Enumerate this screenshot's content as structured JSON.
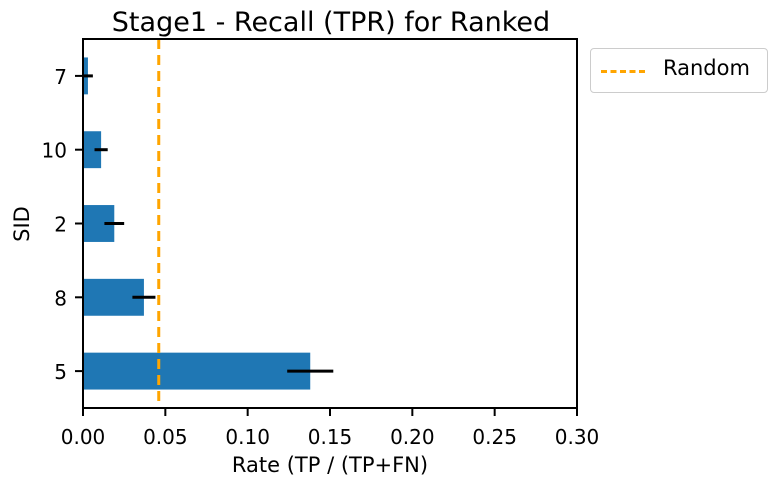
{
  "chart_data": {
    "type": "bar",
    "orientation": "horizontal",
    "title": "Stage1 - Recall (TPR) for Ranked",
    "xlabel": "Rate (TP / (TP+FN)",
    "ylabel": "SID",
    "xlim": [
      0,
      0.3
    ],
    "xticks": [
      0.0,
      0.05,
      0.1,
      0.15,
      0.2,
      0.25,
      0.3
    ],
    "xtick_labels": [
      "0.00",
      "0.05",
      "0.10",
      "0.15",
      "0.20",
      "0.25",
      "0.30"
    ],
    "categories": [
      "7",
      "10",
      "2",
      "8",
      "5"
    ],
    "values": [
      0.003,
      0.011,
      0.019,
      0.037,
      0.138
    ],
    "errors": [
      0.003,
      0.004,
      0.006,
      0.007,
      0.014
    ],
    "bar_color": "#1f77b4",
    "error_color": "#000000",
    "reference_line": {
      "name": "Random",
      "x": 0.046,
      "color": "#ffa500",
      "style": "dashed"
    },
    "legend": {
      "position": "outside-right-top",
      "entries": [
        "Random"
      ]
    },
    "grid": false
  }
}
